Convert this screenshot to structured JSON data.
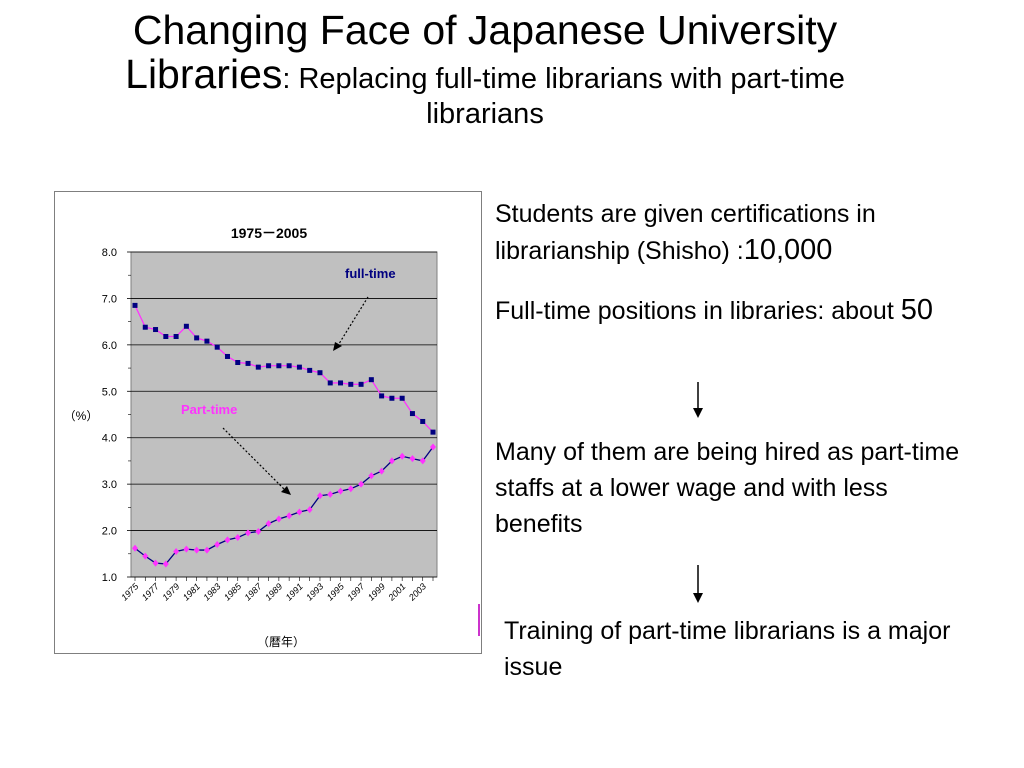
{
  "slide": {
    "title_main": "Changing Face of Japanese University",
    "title_line2_main": "Libraries",
    "title_line2_sub": ": Replacing full-time librarians with part-time",
    "title_line3": "librarians",
    "text1_a": "Students are given certifications in librarianship (Shisho) :",
    "text1_num": "10,000",
    "text2_a": "Full-time positions in libraries: about ",
    "text2_num": "50",
    "text3": "Many of them are being hired as part-time staffs at a lower wage and with less benefits",
    "text4": "Training of part-time librarians is a major issue"
  },
  "chart_data": {
    "type": "line",
    "title": "1975－2005",
    "ylabel": "（%）",
    "xlabel": "（暦年）",
    "ylim": [
      1.0,
      8.0
    ],
    "yticks": [
      "8.0",
      "7.0",
      "6.0",
      "5.0",
      "4.0",
      "3.0",
      "2.0",
      "1.0"
    ],
    "x": [
      1975,
      1976,
      1977,
      1978,
      1979,
      1980,
      1981,
      1982,
      1983,
      1984,
      1985,
      1986,
      1987,
      1988,
      1989,
      1990,
      1991,
      1992,
      1993,
      1994,
      1995,
      1996,
      1997,
      1998,
      1999,
      2000,
      2001,
      2002,
      2003,
      2004
    ],
    "xtick_labels": [
      "1975",
      "1977",
      "1979",
      "1981",
      "1983",
      "1985",
      "1987",
      "1989",
      "1991",
      "1993",
      "1995",
      "1997",
      "1999",
      "2001",
      "2003"
    ],
    "grid": true,
    "series": [
      {
        "name": "full-time",
        "color": "#000080",
        "line_color": "#ff33ff",
        "values": [
          6.85,
          6.38,
          6.33,
          6.18,
          6.18,
          6.4,
          6.15,
          6.08,
          5.95,
          5.75,
          5.62,
          5.6,
          5.52,
          5.55,
          5.55,
          5.55,
          5.52,
          5.45,
          5.4,
          5.18,
          5.18,
          5.15,
          5.15,
          5.25,
          4.9,
          4.85,
          4.85,
          4.52,
          4.35,
          4.12
        ]
      },
      {
        "name": "Part-time",
        "color": "#ff33ff",
        "line_color": "#000080",
        "values": [
          1.62,
          1.45,
          1.3,
          1.28,
          1.55,
          1.6,
          1.58,
          1.58,
          1.7,
          1.8,
          1.85,
          1.95,
          1.98,
          2.15,
          2.25,
          2.32,
          2.4,
          2.45,
          2.75,
          2.78,
          2.85,
          2.9,
          3.0,
          3.18,
          3.28,
          3.5,
          3.6,
          3.55,
          3.5,
          3.8
        ]
      }
    ],
    "annotations": [
      {
        "text": "full-time",
        "color": "#000080"
      },
      {
        "text": "Part-time",
        "color": "#ff33ff"
      }
    ]
  }
}
